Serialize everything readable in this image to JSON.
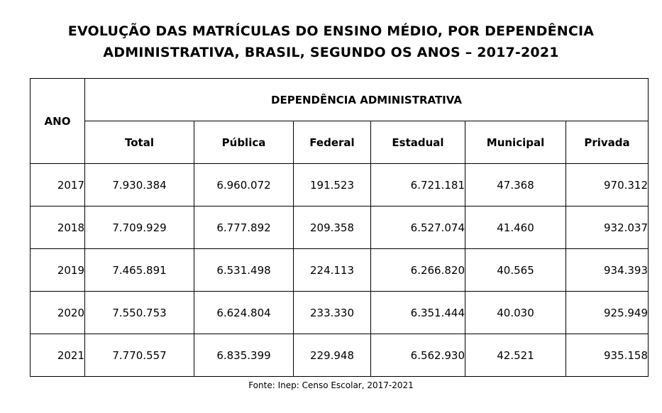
{
  "title": {
    "line1": "EVOLUÇÃO DAS MATRÍCULAS DO ENSINO MÉDIO, POR DEPENDÊNCIA",
    "line2": "ADMINISTRATIVA, BRASIL, SEGUNDO OS ANOS – 2017-2021"
  },
  "table": {
    "year_header": "ANO",
    "group_header": "DEPENDÊNCIA ADMINISTRATIVA",
    "columns": [
      "Total",
      "Pública",
      "Federal",
      "Estadual",
      "Municipal",
      "Privada"
    ],
    "rows": [
      {
        "year": "2017",
        "values": [
          "7.930.384",
          "6.960.072",
          "191.523",
          "6.721.181",
          "47.368",
          "970.312"
        ]
      },
      {
        "year": "2018",
        "values": [
          "7.709.929",
          "6.777.892",
          "209.358",
          "6.527.074",
          "41.460",
          "932.037"
        ]
      },
      {
        "year": "2019",
        "values": [
          "7.465.891",
          "6.531.498",
          "224.113",
          "6.266.820",
          "40.565",
          "934.393"
        ]
      },
      {
        "year": "2020",
        "values": [
          "7.550.753",
          "6.624.804",
          "233.330",
          "6.351.444",
          "40.030",
          "925.949"
        ]
      },
      {
        "year": "2021",
        "values": [
          "7.770.557",
          "6.835.399",
          "229.948",
          "6.562.930",
          "42.521",
          "935.158"
        ]
      }
    ]
  },
  "source": "Fonte: Inep: Censo Escolar, 2017-2021"
}
